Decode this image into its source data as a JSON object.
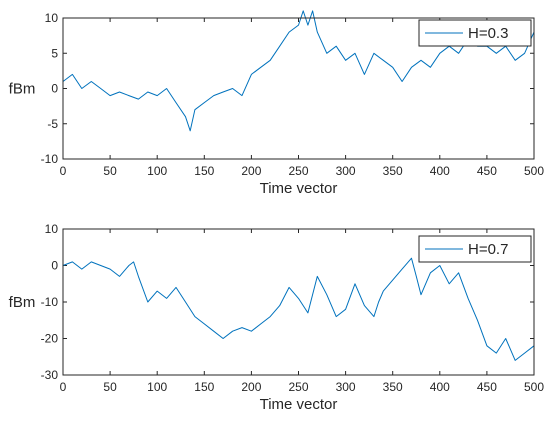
{
  "chart_data": [
    {
      "type": "line",
      "xlabel": "Time vector",
      "ylabel": "fBm",
      "xlim": [
        0,
        500
      ],
      "ylim": [
        -10,
        10
      ],
      "xticks": [
        "0",
        "50",
        "100",
        "150",
        "200",
        "250",
        "300",
        "350",
        "400",
        "450",
        "500"
      ],
      "yticks": [
        "10",
        "5",
        "0",
        "-5",
        "-10"
      ],
      "legend_position": "top-right",
      "grid": false,
      "series": [
        {
          "name": "H=0.3",
          "color": "#0072bd",
          "x": [
            0,
            10,
            20,
            30,
            40,
            50,
            60,
            70,
            80,
            90,
            100,
            110,
            120,
            130,
            135,
            140,
            150,
            160,
            170,
            180,
            190,
            200,
            210,
            220,
            230,
            240,
            250,
            255,
            260,
            265,
            270,
            280,
            290,
            300,
            310,
            320,
            330,
            340,
            350,
            360,
            370,
            380,
            390,
            400,
            410,
            420,
            430,
            440,
            450,
            460,
            470,
            480,
            490,
            500
          ],
          "y": [
            1,
            2,
            0,
            1,
            0,
            -1,
            -0.5,
            -1,
            -1.5,
            -0.5,
            -1,
            0,
            -2,
            -4,
            -6,
            -3,
            -2,
            -1,
            -0.5,
            0,
            -1,
            2,
            3,
            4,
            6,
            8,
            9,
            11,
            9,
            11,
            8,
            5,
            6,
            4,
            5,
            2,
            5,
            4,
            3,
            1,
            3,
            4,
            3,
            5,
            6,
            5,
            7,
            6,
            6,
            5,
            6,
            4,
            5,
            8
          ]
        }
      ]
    },
    {
      "type": "line",
      "xlabel": "Time vector",
      "ylabel": "fBm",
      "xlim": [
        0,
        500
      ],
      "ylim": [
        -30,
        10
      ],
      "xticks": [
        "0",
        "50",
        "100",
        "150",
        "200",
        "250",
        "300",
        "350",
        "400",
        "450",
        "500"
      ],
      "yticks": [
        "10",
        "0",
        "-10",
        "-20",
        "-30"
      ],
      "legend_position": "top-right",
      "grid": false,
      "series": [
        {
          "name": "H=0.7",
          "color": "#0072bd",
          "x": [
            0,
            10,
            20,
            30,
            40,
            50,
            60,
            70,
            75,
            80,
            90,
            100,
            110,
            120,
            130,
            140,
            150,
            160,
            170,
            180,
            190,
            200,
            210,
            220,
            230,
            240,
            250,
            260,
            270,
            280,
            290,
            300,
            310,
            320,
            330,
            335,
            340,
            350,
            360,
            370,
            375,
            380,
            390,
            400,
            410,
            420,
            430,
            440,
            450,
            460,
            470,
            480,
            490,
            500
          ],
          "y": [
            0,
            1,
            -1,
            1,
            0,
            -1,
            -3,
            0,
            1,
            -3,
            -10,
            -7,
            -9,
            -6,
            -10,
            -14,
            -16,
            -18,
            -20,
            -18,
            -17,
            -18,
            -16,
            -14,
            -11,
            -6,
            -9,
            -13,
            -3,
            -8,
            -14,
            -12,
            -5,
            -11,
            -14,
            -10,
            -7,
            -4,
            -1,
            2,
            -3,
            -8,
            -2,
            0,
            -5,
            -2,
            -9,
            -15,
            -22,
            -24,
            -20,
            -26,
            -24,
            -22
          ]
        }
      ]
    }
  ]
}
